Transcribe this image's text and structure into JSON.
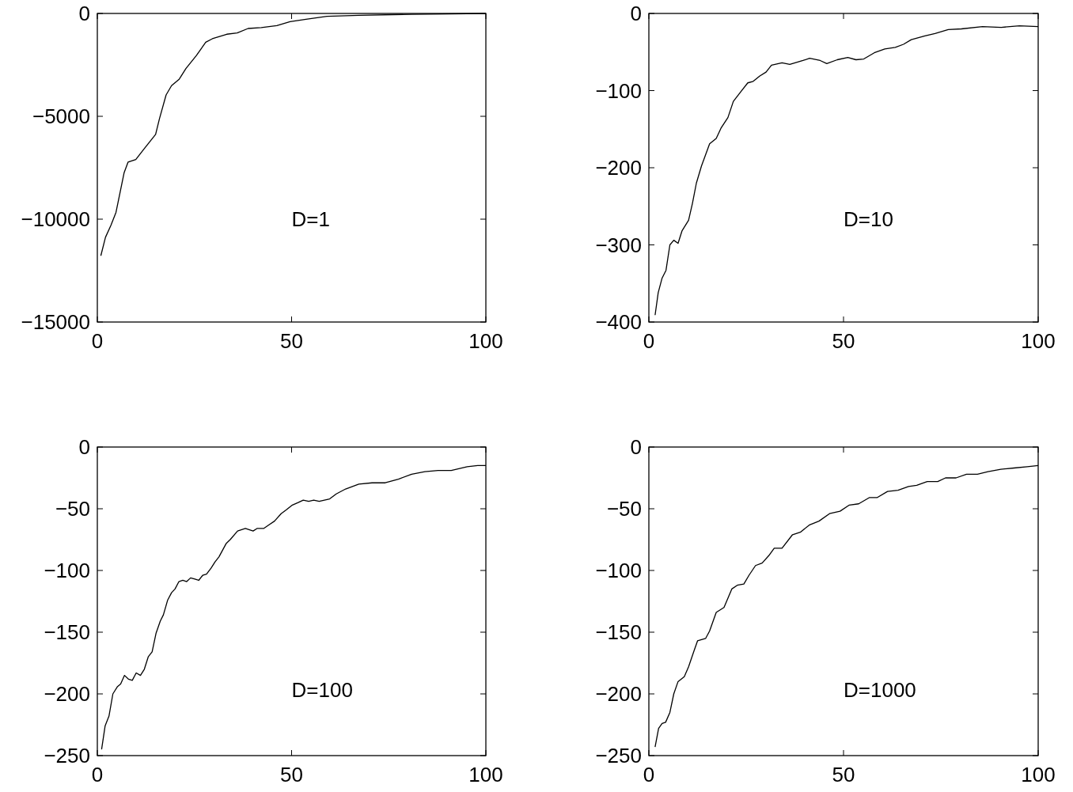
{
  "chart_data": [
    {
      "type": "line",
      "annotations": [
        "D=1"
      ],
      "xlim": [
        0,
        100
      ],
      "xticks": [
        0,
        50,
        100
      ],
      "ylim": [
        -15000,
        0
      ],
      "yticks": [
        -15000,
        -10000,
        -5000,
        0
      ],
      "marker": "none",
      "line_style": "solid",
      "series": [
        {
          "color": "#000000",
          "x": [
            0.9,
            2.1,
            3.5,
            4.8,
            6.9,
            7.9,
            9.9,
            12,
            15,
            16,
            17.7,
            19.1,
            21.1,
            22.8,
            25.5,
            27.9,
            29.6,
            33.3,
            36,
            38.8,
            42.2,
            46.2,
            49.6,
            53.7,
            59.1,
            67.3,
            80.9,
            100
          ],
          "values": [
            -11780,
            -10880,
            -10300,
            -9670,
            -7740,
            -7230,
            -7100,
            -6590,
            -5880,
            -5110,
            -3960,
            -3510,
            -3190,
            -2680,
            -2040,
            -1400,
            -1230,
            -1010,
            -950,
            -730,
            -690,
            -590,
            -400,
            -280,
            -140,
            -90,
            -40,
            0
          ]
        }
      ]
    },
    {
      "type": "line",
      "annotations": [
        "D=10"
      ],
      "xlim": [
        0,
        100
      ],
      "xticks": [
        0,
        50,
        100
      ],
      "ylim": [
        -400,
        0
      ],
      "yticks": [
        -400,
        -300,
        -200,
        -100,
        0
      ],
      "marker": "none",
      "line_style": "solid",
      "series": [
        {
          "color": "#000000",
          "x": [
            1.6,
            2.4,
            3.4,
            4.4,
            5.4,
            6.4,
            7.5,
            8.5,
            10.2,
            11.2,
            12.2,
            13.5,
            15.6,
            17.3,
            18.6,
            20.3,
            21.7,
            23.7,
            25.4,
            26.8,
            28.5,
            30.1,
            31.5,
            34.2,
            36.2,
            39.6,
            41.3,
            44,
            45.7,
            48.4,
            51.1,
            53.2,
            55.2,
            57.9,
            60.6,
            63.3,
            65.4,
            67.4,
            70.9,
            73.5,
            76.9,
            80.3,
            85.7,
            90.5,
            95.2,
            100
          ],
          "values": [
            -391,
            -362,
            -343,
            -333,
            -300,
            -294,
            -298,
            -282,
            -268,
            -246,
            -220,
            -198,
            -169,
            -162,
            -148,
            -135,
            -114,
            -101,
            -90,
            -88,
            -81,
            -76,
            -67,
            -64,
            -66,
            -61,
            -58,
            -61,
            -65,
            -60,
            -57,
            -60,
            -59,
            -51,
            -46,
            -44,
            -40,
            -34,
            -29,
            -26,
            -21,
            -20,
            -17,
            -18,
            -16,
            -17
          ]
        }
      ]
    },
    {
      "type": "line",
      "annotations": [
        "D=100"
      ],
      "xlim": [
        0,
        100
      ],
      "xticks": [
        0,
        50,
        100
      ],
      "ylim": [
        -250,
        0
      ],
      "yticks": [
        -250,
        -200,
        -150,
        -100,
        -50,
        0
      ],
      "marker": "none",
      "line_style": "solid",
      "series": [
        {
          "color": "#000000",
          "x": [
            1.1,
            2,
            3,
            4,
            5.2,
            6,
            7,
            8,
            9,
            10,
            11.1,
            12.1,
            13.1,
            14.1,
            15.1,
            16.2,
            17,
            18.1,
            19.1,
            20,
            21,
            22,
            23,
            24,
            25.1,
            26.1,
            27.1,
            28.1,
            29.3,
            30.3,
            31.3,
            33.2,
            34.2,
            36.1,
            38.1,
            40.1,
            41.1,
            42.8,
            44.2,
            45.6,
            47.3,
            48.6,
            50.2,
            51.7,
            53,
            54.4,
            55.7,
            57.1,
            59.8,
            61.5,
            63.9,
            67.3,
            70.7,
            74.1,
            77.5,
            80.9,
            84.3,
            87.7,
            91.1,
            95.2,
            97.9,
            100
          ],
          "values": [
            -245,
            -226,
            -218,
            -200,
            -194,
            -192,
            -185,
            -188,
            -189,
            -183,
            -185,
            -180,
            -170,
            -166,
            -151,
            -141,
            -136,
            -124,
            -118,
            -115,
            -109,
            -108,
            -109,
            -106,
            -107,
            -108,
            -104,
            -103,
            -98,
            -93,
            -89,
            -78,
            -75,
            -68,
            -66,
            -68,
            -66,
            -66,
            -63,
            -60,
            -54,
            -51,
            -47,
            -45,
            -43,
            -44,
            -43,
            -44,
            -42,
            -38,
            -34,
            -30,
            -29,
            -29,
            -26,
            -22,
            -20,
            -19,
            -19,
            -16,
            -15,
            -15
          ]
        }
      ]
    },
    {
      "type": "line",
      "annotations": [
        "D=1000"
      ],
      "xlim": [
        0,
        100
      ],
      "xticks": [
        0,
        50,
        100
      ],
      "ylim": [
        -250,
        0
      ],
      "yticks": [
        -250,
        -200,
        -150,
        -100,
        -50,
        0
      ],
      "marker": "none",
      "line_style": "solid",
      "series": [
        {
          "color": "#000000",
          "x": [
            1.6,
            2.5,
            3.4,
            4.3,
            5.4,
            6.4,
            7.5,
            9.1,
            10.2,
            11.5,
            12.5,
            14.6,
            15.6,
            17.3,
            19.3,
            21.3,
            22.7,
            24.4,
            25.7,
            27.4,
            29.1,
            30.8,
            32.2,
            34.2,
            36.9,
            38.9,
            41.3,
            43.7,
            46.4,
            49.1,
            51.5,
            53.9,
            56.6,
            58.6,
            61.3,
            64,
            66.7,
            68.8,
            71.5,
            74.2,
            76.2,
            78.9,
            81.6,
            84.4,
            87.1,
            90.4,
            93.8,
            97.2,
            100
          ],
          "values": [
            -243,
            -228,
            -224,
            -223,
            -215,
            -200,
            -190,
            -186,
            -178,
            -166,
            -157,
            -155,
            -149,
            -134,
            -130,
            -115,
            -112,
            -111,
            -104,
            -96,
            -94,
            -88,
            -82,
            -82,
            -71,
            -69,
            -63,
            -60,
            -54,
            -52,
            -47,
            -46,
            -41,
            -41,
            -36,
            -35,
            -32,
            -31,
            -28,
            -28,
            -25,
            -25,
            -22,
            -22,
            -20,
            -18,
            -17,
            -16,
            -15
          ]
        }
      ]
    }
  ]
}
